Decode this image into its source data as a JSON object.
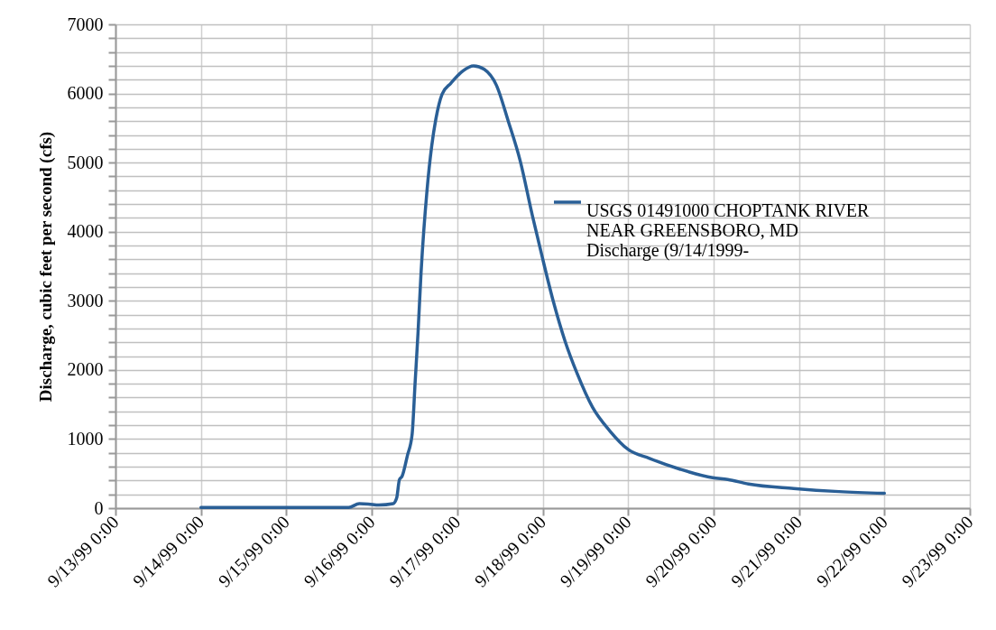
{
  "chart_data": {
    "type": "line",
    "ylabel": "Discharge, cubic feet per second (cfs)",
    "xlim": [
      "1999-09-13T00:00",
      "1999-09-23T00:00"
    ],
    "xticks": [
      {
        "value": "1999-09-13T00:00",
        "label": "9/13/99 0:00"
      },
      {
        "value": "1999-09-14T00:00",
        "label": "9/14/99 0:00"
      },
      {
        "value": "1999-09-15T00:00",
        "label": "9/15/99 0:00"
      },
      {
        "value": "1999-09-16T00:00",
        "label": "9/16/99 0:00"
      },
      {
        "value": "1999-09-17T00:00",
        "label": "9/17/99 0:00"
      },
      {
        "value": "1999-09-18T00:00",
        "label": "9/18/99 0:00"
      },
      {
        "value": "1999-09-19T00:00",
        "label": "9/19/99 0:00"
      },
      {
        "value": "1999-09-20T00:00",
        "label": "9/20/99 0:00"
      },
      {
        "value": "1999-09-21T00:00",
        "label": "9/21/99 0:00"
      },
      {
        "value": "1999-09-22T00:00",
        "label": "9/22/99 0:00"
      },
      {
        "value": "1999-09-23T00:00",
        "label": "9/23/99 0:00"
      }
    ],
    "ylim": [
      0,
      7000
    ],
    "yticks": [
      0,
      {
        "value": 200,
        "label": null
      },
      {
        "value": 400,
        "label": null
      },
      {
        "value": 600,
        "label": null
      },
      {
        "value": 800,
        "label": null
      },
      1000,
      {
        "value": 1200,
        "label": null
      },
      {
        "value": 1400,
        "label": null
      },
      {
        "value": 1600,
        "label": null
      },
      {
        "value": 1800,
        "label": null
      },
      2000,
      {
        "value": 2200,
        "label": null
      },
      {
        "value": 2400,
        "label": null
      },
      {
        "value": 2600,
        "label": null
      },
      {
        "value": 2800,
        "label": null
      },
      3000,
      {
        "value": 3200,
        "label": null
      },
      {
        "value": 3400,
        "label": null
      },
      {
        "value": 3600,
        "label": null
      },
      {
        "value": 3800,
        "label": null
      },
      4000,
      {
        "value": 4200,
        "label": null
      },
      {
        "value": 4400,
        "label": null
      },
      {
        "value": 4600,
        "label": null
      },
      {
        "value": 4800,
        "label": null
      },
      5000,
      {
        "value": 5200,
        "label": null
      },
      {
        "value": 5400,
        "label": null
      },
      {
        "value": 5600,
        "label": null
      },
      {
        "value": 5800,
        "label": null
      },
      6000,
      {
        "value": 6200,
        "label": null
      },
      {
        "value": 6400,
        "label": null
      },
      {
        "value": 6600,
        "label": null
      },
      {
        "value": 6800,
        "label": null
      },
      7000
    ],
    "grid": true,
    "legend": "right",
    "series": [
      {
        "name": "USGS 01491000 CHOPTANK RIVER NEAR GREENSBORO, MD Discharge (9/14/1999-",
        "color": "#2a5f96",
        "x": [
          "1999-09-14T00:00",
          "1999-09-15T00:00",
          "1999-09-15T17:30",
          "1999-09-15T20:30",
          "1999-09-15T23:00",
          "1999-09-16T02:00",
          "1999-09-16T06:00",
          "1999-09-16T07:00",
          "1999-09-16T07:45",
          "1999-09-16T08:30",
          "1999-09-16T10:00",
          "1999-09-16T11:20",
          "1999-09-16T12:10",
          "1999-09-16T13:00",
          "1999-09-16T13:50",
          "1999-09-16T15:30",
          "1999-09-16T16:50",
          "1999-09-16T18:00",
          "1999-09-16T19:45",
          "1999-09-16T22:15",
          "1999-09-17T01:40",
          "1999-09-17T04:35",
          "1999-09-17T07:35",
          "1999-09-17T11:00",
          "1999-09-17T14:20",
          "1999-09-17T17:40",
          "1999-09-17T21:05",
          "1999-09-17T23:40",
          "1999-09-18T03:00",
          "1999-09-18T06:20",
          "1999-09-18T09:45",
          "1999-09-18T14:00",
          "1999-09-18T19:00",
          "1999-09-19T00:00",
          "1999-09-19T06:00",
          "1999-09-19T14:30",
          "1999-09-19T23:45",
          "1999-09-20T04:00",
          "1999-09-20T09:50",
          "1999-09-20T22:30",
          "1999-09-21T11:15",
          "1999-09-22T00:00"
        ],
        "values": [
          10,
          10,
          10,
          65,
          60,
          45,
          65,
          150,
          410,
          460,
          760,
          1070,
          1810,
          2550,
          3400,
          4590,
          5240,
          5630,
          5990,
          6150,
          6330,
          6400,
          6350,
          6120,
          5600,
          5030,
          4240,
          3680,
          2990,
          2410,
          1940,
          1460,
          1110,
          850,
          720,
          565,
          440,
          415,
          350,
          285,
          240,
          215
        ]
      }
    ]
  }
}
